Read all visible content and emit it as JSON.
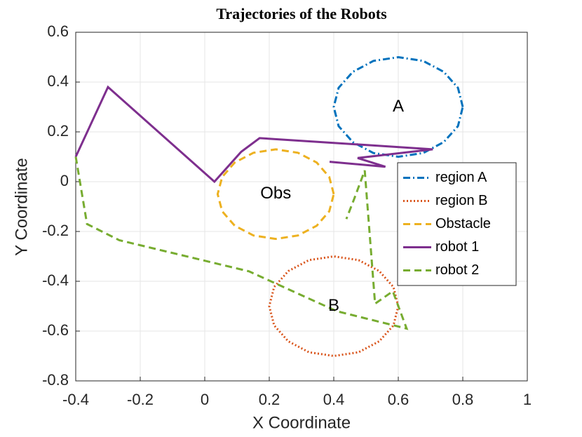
{
  "chart_data": {
    "type": "line",
    "title": "Trajectories of the Robots",
    "x_label": "X Coordinate",
    "y_label": "Y Coordinate",
    "xlim": [
      -0.4,
      1
    ],
    "ylim": [
      -0.8,
      0.6
    ],
    "xticks": [
      -0.4,
      -0.2,
      0,
      0.2,
      0.4,
      0.6,
      0.8,
      1
    ],
    "yticks": [
      -0.8,
      -0.6,
      -0.4,
      -0.2,
      0,
      0.2,
      0.4,
      0.6
    ],
    "grid": true,
    "legend": "east",
    "series": [
      {
        "name": "region A",
        "color": "#0072bd",
        "dash": "dashdot",
        "x": [
          0.8,
          0.785,
          0.741,
          0.677,
          0.6,
          0.523,
          0.459,
          0.415,
          0.4,
          0.415,
          0.459,
          0.523,
          0.6,
          0.677,
          0.741,
          0.785,
          0.8
        ],
        "values": [
          0.3,
          0.377,
          0.441,
          0.485,
          0.5,
          0.485,
          0.441,
          0.377,
          0.3,
          0.223,
          0.159,
          0.115,
          0.1,
          0.115,
          0.159,
          0.223,
          0.3
        ]
      },
      {
        "name": "region B",
        "color": "#d95319",
        "dash": "dotted",
        "x": [
          0.6,
          0.585,
          0.541,
          0.477,
          0.4,
          0.323,
          0.259,
          0.215,
          0.2,
          0.215,
          0.259,
          0.323,
          0.4,
          0.477,
          0.541,
          0.585,
          0.6
        ],
        "values": [
          -0.5,
          -0.423,
          -0.359,
          -0.315,
          -0.3,
          -0.315,
          -0.359,
          -0.423,
          -0.5,
          -0.577,
          -0.641,
          -0.685,
          -0.7,
          -0.685,
          -0.641,
          -0.577,
          -0.5
        ]
      },
      {
        "name": "Obstacle",
        "color": "#edb120",
        "dash": "dashed",
        "x": [
          0.4,
          0.386,
          0.347,
          0.289,
          0.22,
          0.151,
          0.093,
          0.054,
          0.04,
          0.054,
          0.093,
          0.151,
          0.22,
          0.289,
          0.347,
          0.386,
          0.4
        ],
        "values": [
          -0.05,
          0.019,
          0.077,
          0.116,
          0.13,
          0.116,
          0.077,
          0.019,
          -0.05,
          -0.119,
          -0.177,
          -0.216,
          -0.23,
          -0.216,
          -0.177,
          -0.119,
          -0.05
        ]
      },
      {
        "name": "robot 1",
        "color": "#7e2f8e",
        "dash": "solid",
        "x": [
          -0.4,
          -0.3,
          0.03,
          0.113,
          0.17,
          0.707,
          0.474,
          0.56,
          0.387
        ],
        "values": [
          0.1,
          0.38,
          0.0,
          0.12,
          0.175,
          0.13,
          0.095,
          0.06,
          0.08
        ]
      },
      {
        "name": "robot 2",
        "color": "#77ac30",
        "dash": "dashed",
        "x": [
          -0.4,
          -0.365,
          -0.265,
          0.137,
          0.409,
          0.626,
          0.583,
          0.528,
          0.496,
          0.463,
          0.439
        ],
        "values": [
          0.1,
          -0.17,
          -0.235,
          -0.36,
          -0.52,
          -0.59,
          -0.44,
          -0.49,
          0.045,
          -0.07,
          -0.15
        ]
      }
    ],
    "annotations": [
      {
        "text": "A",
        "x": 0.6,
        "y": 0.3
      },
      {
        "text": "Obs",
        "x": 0.22,
        "y": -0.05
      },
      {
        "text": "B",
        "x": 0.4,
        "y": -0.5
      }
    ]
  }
}
